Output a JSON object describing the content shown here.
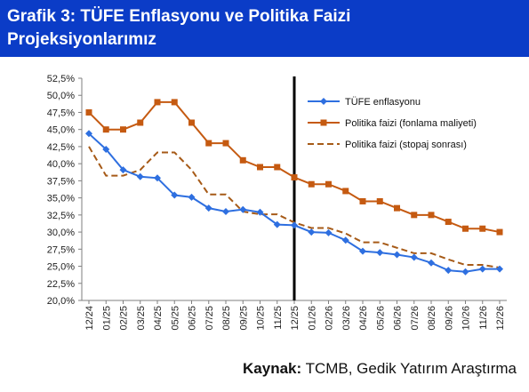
{
  "header": {
    "title_line1": "Grafik 3: TÜFE Enflasyonu ve Politika Faizi",
    "title_line2": "Projeksiyonlarımız",
    "background": "#0b3cc7"
  },
  "source": {
    "label": "Kaynak:",
    "text": "TCMB, Gedik Yatırım Araştırma"
  },
  "chart_data": {
    "type": "line",
    "title": "",
    "xlabel": "",
    "ylabel": "",
    "ylim": [
      20,
      52.5
    ],
    "y_ticks": [
      "20,0%",
      "22,5%",
      "25,0%",
      "27,5%",
      "30,0%",
      "32,5%",
      "35,0%",
      "37,5%",
      "40,0%",
      "42,5%",
      "45,0%",
      "47,5%",
      "50,0%",
      "52,5%"
    ],
    "categories": [
      "12/24",
      "01/25",
      "02/25",
      "03/25",
      "04/25",
      "05/25",
      "06/25",
      "07/25",
      "08/25",
      "09/25",
      "10/25",
      "11/25",
      "12/25",
      "01/26",
      "02/26",
      "03/26",
      "04/26",
      "05/26",
      "06/26",
      "07/26",
      "08/26",
      "09/26",
      "10/26",
      "11/26",
      "12/26"
    ],
    "vertical_marker_at": "12/25",
    "grid": false,
    "legend_position": "top-right",
    "series": [
      {
        "name": "TÜFE enflasyonu",
        "color": "#2e6fe0",
        "style": "solid-diamond-markers",
        "values": [
          44.4,
          42.1,
          39.1,
          38.1,
          37.9,
          35.4,
          35.1,
          33.5,
          33.0,
          33.3,
          32.9,
          31.1,
          31.0,
          30.0,
          29.9,
          28.8,
          27.2,
          27.0,
          26.7,
          26.3,
          25.5,
          24.4,
          24.2,
          24.6,
          24.6
        ]
      },
      {
        "name": "Politika faizi (fonlama maliyeti)",
        "color": "#c55a11",
        "style": "step-square-markers",
        "values": [
          47.5,
          45.0,
          45.0,
          46.0,
          49.0,
          49.0,
          46.0,
          43.0,
          43.0,
          40.5,
          39.5,
          39.5,
          38.0,
          37.0,
          37.0,
          36.0,
          34.5,
          34.5,
          33.5,
          32.5,
          32.5,
          31.5,
          30.5,
          30.5,
          30.0
        ]
      },
      {
        "name": "Politika faizi (stopaj sonrası)",
        "color": "#a65a17",
        "style": "dashed-step",
        "values": [
          42.5,
          38.25,
          38.25,
          39.1,
          41.65,
          41.65,
          39.1,
          35.5,
          35.5,
          33.0,
          32.6,
          32.6,
          31.4,
          30.6,
          30.6,
          29.8,
          28.5,
          28.5,
          27.7,
          26.9,
          26.9,
          26.0,
          25.2,
          25.2,
          24.8
        ]
      }
    ]
  }
}
